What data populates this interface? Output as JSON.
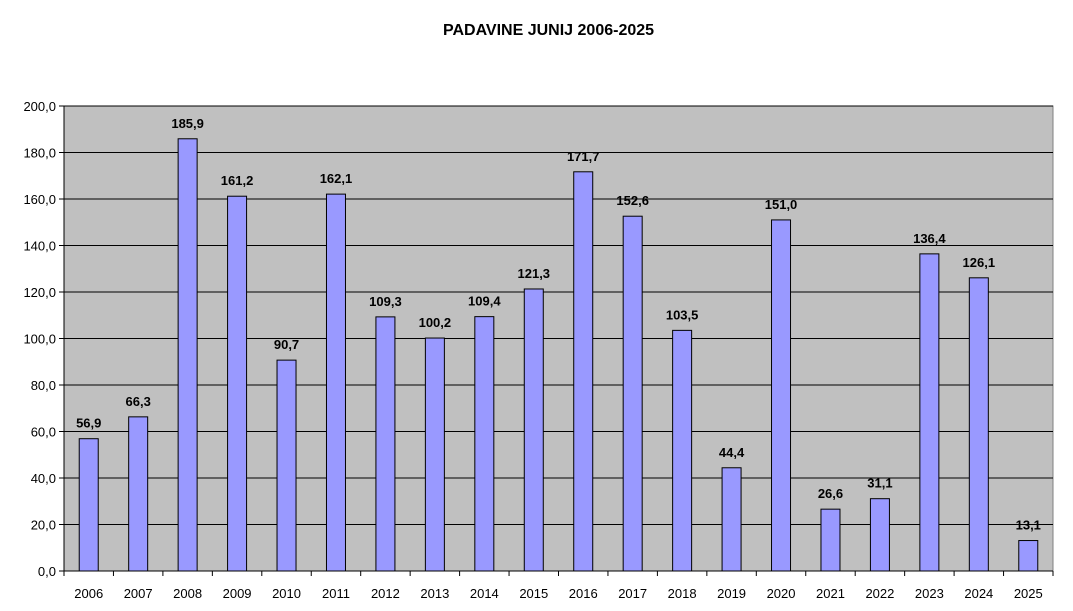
{
  "chart_data": {
    "type": "bar",
    "title": "PADAVINE JUNIJ 2006-2025",
    "xlabel": "",
    "ylabel": "",
    "ylim": [
      0,
      200
    ],
    "yticks": [
      "0,0",
      "20,0",
      "40,0",
      "60,0",
      "80,0",
      "100,0",
      "120,0",
      "140,0",
      "160,0",
      "180,0",
      "200,0"
    ],
    "grid": true,
    "categories": [
      "2006",
      "2007",
      "2008",
      "2009",
      "2010",
      "2011",
      "2012",
      "2013",
      "2014",
      "2015",
      "2016",
      "2017",
      "2018",
      "2019",
      "2020",
      "2021",
      "2022",
      "2023",
      "2024",
      "2025"
    ],
    "values": [
      56.9,
      66.3,
      185.9,
      161.2,
      90.7,
      162.1,
      109.3,
      100.2,
      109.4,
      121.3,
      171.7,
      152.6,
      103.5,
      44.4,
      151.0,
      26.6,
      31.1,
      136.4,
      126.1,
      13.1
    ],
    "value_labels": [
      "56,9",
      "66,3",
      "185,9",
      "161,2",
      "90,7",
      "162,1",
      "109,3",
      "100,2",
      "109,4",
      "121,3",
      "171,7",
      "152,6",
      "103,5",
      "44,4",
      "151,0",
      "26,6",
      "31,1",
      "136,4",
      "126,1",
      "13,1"
    ],
    "colors": {
      "plot_background": "#c0c0c0",
      "bar_fill": "#9999ff",
      "bar_stroke": "#000000",
      "gridline": "#000000"
    }
  }
}
